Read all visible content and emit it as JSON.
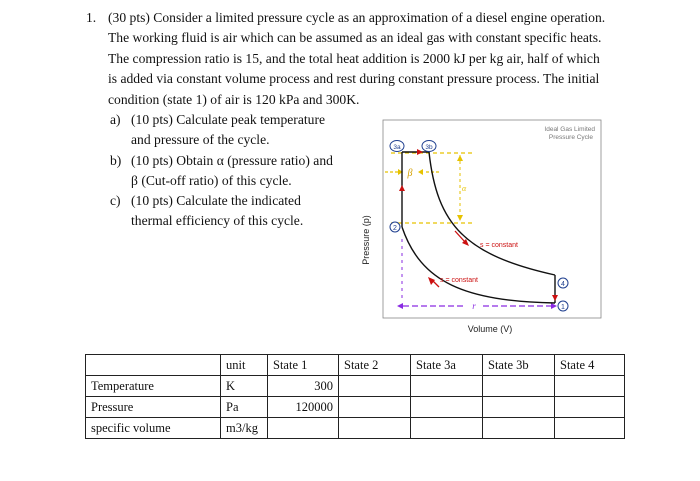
{
  "problem": {
    "number": "1.",
    "lines": [
      "(30 pts) Consider a limited pressure cycle as an approximation of a diesel engine operation.",
      "The working fluid is air which can be assumed as an ideal gas with constant specific heats.",
      "The compression ratio is 15, and the total heat addition is 2000 kJ per kg air, half of which",
      "is added via constant volume process and rest during constant pressure process. The initial",
      "condition (state 1) of air is 120 kPa and 300K."
    ],
    "parts": [
      {
        "label": "a)",
        "lines": [
          "(10 pts) Calculate peak temperature",
          "and pressure of the cycle."
        ]
      },
      {
        "label": "b)",
        "lines": [
          "(10 pts) Obtain α (pressure ratio) and",
          "β (Cut-off ratio) of this cycle."
        ]
      },
      {
        "label": "c)",
        "lines": [
          "(10 pts) Calculate the indicated",
          "thermal efficiency of this cycle."
        ]
      }
    ]
  },
  "diagram": {
    "title_line1": "Ideal Gas Limited",
    "title_line2": "Pressure Cycle",
    "ylabel": "Pressure (p)",
    "xlabel": "Volume (V)",
    "states": {
      "s3a": "3a",
      "s3b": "3b",
      "s2": "2",
      "s4": "4",
      "s1": "1"
    },
    "beta": "β",
    "alpha": "α",
    "r": "r",
    "s_const_upper": "s = constant",
    "s_const_lower": "s = constant",
    "colors": {
      "state_blue": "#1f3f8f",
      "arrow_red": "#cc1111",
      "dash_yellow": "#e6c200",
      "dash_purple": "#8a2be2"
    }
  },
  "table": {
    "headers": [
      "",
      "unit",
      "State 1",
      "State 2",
      "State 3a",
      "State 3b",
      "State 4"
    ],
    "rows": [
      {
        "label": "Temperature",
        "unit": "K",
        "cells": [
          "300",
          "",
          "",
          "",
          ""
        ]
      },
      {
        "label": "Pressure",
        "unit": "Pa",
        "cells": [
          "120000",
          "",
          "",
          "",
          ""
        ]
      },
      {
        "label": "specific volume",
        "unit": "m3/kg",
        "cells": [
          "",
          "",
          "",
          "",
          ""
        ]
      }
    ]
  }
}
